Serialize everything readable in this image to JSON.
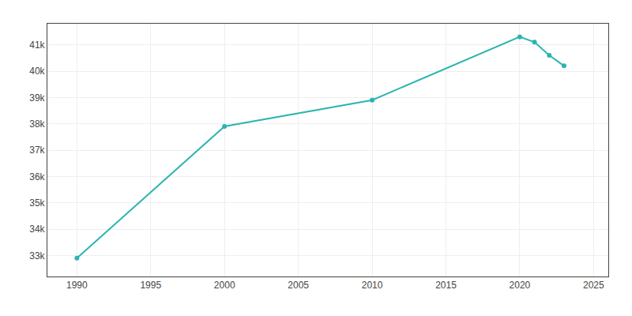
{
  "chart_data": {
    "type": "line",
    "x": [
      1990,
      2000,
      2010,
      2020,
      2021,
      2022,
      2023
    ],
    "values": [
      32900,
      37900,
      38900,
      41300,
      41100,
      40600,
      40200
    ],
    "color": "#2ab5b0",
    "marker": "circle",
    "xlim": [
      1988,
      2026
    ],
    "ylim": [
      32200,
      41800
    ],
    "xticks": [
      1990,
      1995,
      2000,
      2005,
      2010,
      2015,
      2020,
      2025
    ],
    "yticks": [
      {
        "value": 33000,
        "label": "33k"
      },
      {
        "value": 34000,
        "label": "34k"
      },
      {
        "value": 35000,
        "label": "35k"
      },
      {
        "value": 36000,
        "label": "36k"
      },
      {
        "value": 37000,
        "label": "37k"
      },
      {
        "value": 38000,
        "label": "38k"
      },
      {
        "value": 39000,
        "label": "39k"
      },
      {
        "value": 40000,
        "label": "40k"
      },
      {
        "value": 41000,
        "label": "41k"
      }
    ],
    "grid": true
  }
}
